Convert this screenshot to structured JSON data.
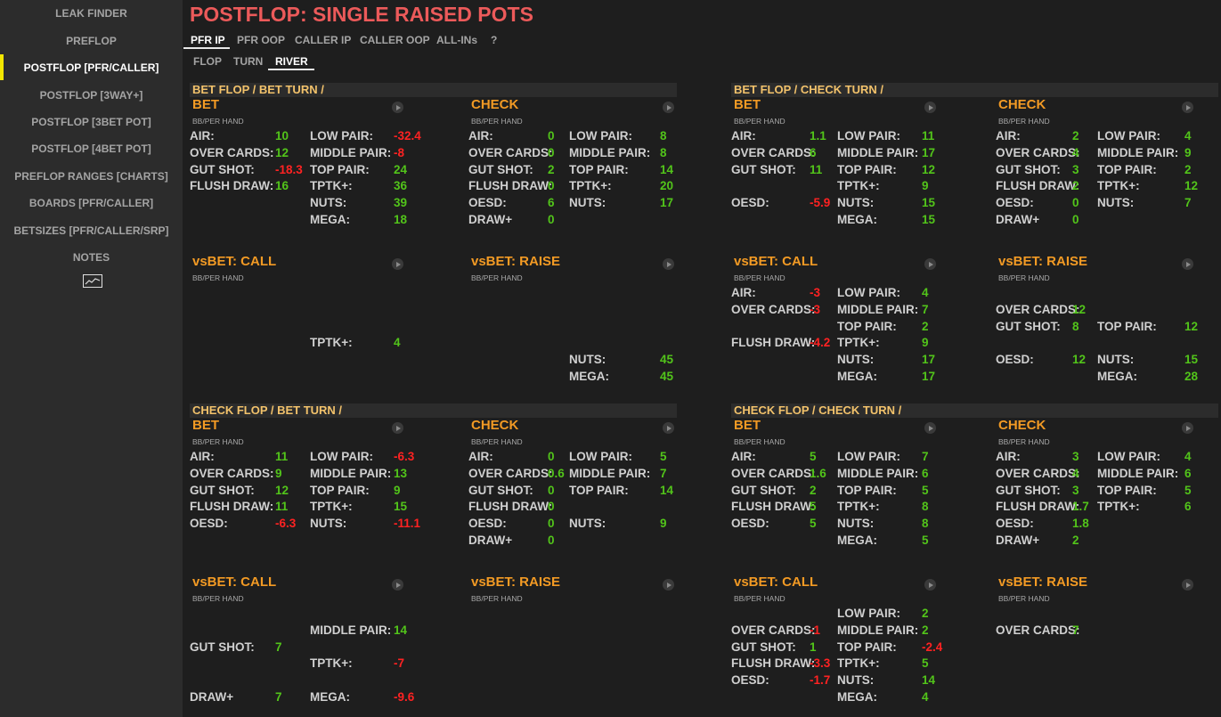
{
  "sidebar": {
    "items": [
      {
        "label": "LEAK FINDER"
      },
      {
        "label": "PREFLOP"
      },
      {
        "label": "POSTFLOP [PFR/CALLER]",
        "active": true
      },
      {
        "label": "POSTFLOP [3WAY+]"
      },
      {
        "label": "POSTFLOP [3BET POT]"
      },
      {
        "label": "POSTFLOP [4BET POT]"
      },
      {
        "label": "PREFLOP RANGES [CHARTS]"
      },
      {
        "label": "BOARDS [PFR/CALLER]"
      },
      {
        "label": "BETSIZES [PFR/CALLER/SRP]"
      },
      {
        "label": "NOTES"
      }
    ],
    "accent_color": "#f2e600",
    "chart_icon": "line-chart-icon"
  },
  "page": {
    "title": "POSTFLOP: SINGLE RAISED POTS"
  },
  "tabs": [
    "PFR IP",
    "PFR OOP",
    "CALLER IP",
    "CALLER OOP",
    "ALL-INs",
    "?"
  ],
  "subtabs": [
    "FLOP",
    "TURN",
    "RIVER"
  ],
  "colors": {
    "positive": "#52c41a",
    "negative": "#ff2222",
    "section": "#f29a24",
    "group": "#f2c26b",
    "title": "#ec5a5a"
  },
  "subtitle": "BB/PER HAND",
  "groups": [
    {
      "title": "BET FLOP / BET TURN /",
      "sections": [
        {
          "title": "BET",
          "left": [
            [
              "AIR:",
              "10",
              ""
            ],
            [
              "OVER CARDS:",
              "12",
              ""
            ],
            [
              "GUT SHOT:",
              "-18.3",
              ""
            ],
            [
              "FLUSH DRAW:",
              "16",
              ""
            ],
            [
              "",
              ""
            ],
            [
              "",
              ""
            ]
          ],
          "right": [
            [
              "LOW PAIR:",
              "-32.4"
            ],
            [
              "MIDDLE PAIR:",
              "-8"
            ],
            [
              "TOP PAIR:",
              "24"
            ],
            [
              "TPTK+:",
              "36"
            ],
            [
              "NUTS:",
              "39"
            ],
            [
              "MEGA:",
              "18"
            ]
          ]
        },
        {
          "title": "CHECK",
          "left": [
            [
              "AIR:",
              "0"
            ],
            [
              "OVER CARDS:",
              "0"
            ],
            [
              "GUT SHOT:",
              "2"
            ],
            [
              "FLUSH DRAW:",
              "0"
            ],
            [
              "OESD:",
              "6"
            ],
            [
              "DRAW+",
              "0"
            ]
          ],
          "right": [
            [
              "LOW PAIR:",
              "8"
            ],
            [
              "MIDDLE PAIR:",
              "8"
            ],
            [
              "TOP PAIR:",
              "14"
            ],
            [
              "TPTK+:",
              "20"
            ],
            [
              "NUTS:",
              "17"
            ],
            [
              "",
              ""
            ]
          ]
        },
        {
          "title": "vsBET: CALL",
          "left": [
            [
              "",
              ""
            ],
            [
              "",
              ""
            ],
            [
              "",
              ""
            ],
            [
              "",
              ""
            ],
            [
              "",
              ""
            ],
            [
              "",
              ""
            ]
          ],
          "right": [
            [
              "",
              ""
            ],
            [
              "",
              ""
            ],
            [
              "",
              ""
            ],
            [
              "TPTK+:",
              "4"
            ],
            [
              "",
              ""
            ],
            [
              "",
              ""
            ]
          ]
        },
        {
          "title": "vsBET: RAISE",
          "left": [
            [
              "",
              ""
            ],
            [
              "",
              ""
            ],
            [
              "",
              ""
            ],
            [
              "",
              ""
            ],
            [
              "",
              ""
            ],
            [
              "",
              ""
            ]
          ],
          "right": [
            [
              "",
              ""
            ],
            [
              "",
              ""
            ],
            [
              "",
              ""
            ],
            [
              "",
              ""
            ],
            [
              "NUTS:",
              "45"
            ],
            [
              "MEGA:",
              "45"
            ]
          ]
        }
      ]
    },
    {
      "title": "BET FLOP / CHECK TURN /",
      "sections": [
        {
          "title": "BET",
          "left": [
            [
              "AIR:",
              "1.1"
            ],
            [
              "OVER CARDS:",
              "6"
            ],
            [
              "GUT SHOT:",
              "11"
            ],
            [
              "",
              ""
            ],
            [
              "OESD:",
              "-5.9"
            ],
            [
              "",
              ""
            ]
          ],
          "right": [
            [
              "LOW PAIR:",
              "11"
            ],
            [
              "MIDDLE PAIR:",
              "17"
            ],
            [
              "TOP PAIR:",
              "12"
            ],
            [
              "TPTK+:",
              "9"
            ],
            [
              "NUTS:",
              "15"
            ],
            [
              "MEGA:",
              "15"
            ]
          ]
        },
        {
          "title": "CHECK",
          "left": [
            [
              "AIR:",
              "2"
            ],
            [
              "OVER CARDS:",
              "4"
            ],
            [
              "GUT SHOT:",
              "3"
            ],
            [
              "FLUSH DRAW:",
              "2"
            ],
            [
              "OESD:",
              "0"
            ],
            [
              "DRAW+",
              "0"
            ]
          ],
          "right": [
            [
              "LOW PAIR:",
              "4"
            ],
            [
              "MIDDLE PAIR:",
              "9"
            ],
            [
              "TOP PAIR:",
              "2"
            ],
            [
              "TPTK+:",
              "12"
            ],
            [
              "NUTS:",
              "7"
            ],
            [
              "",
              ""
            ]
          ]
        },
        {
          "title": "vsBET: CALL",
          "left": [
            [
              "AIR:",
              "-3"
            ],
            [
              "OVER CARDS:",
              "-3"
            ],
            [
              "",
              ""
            ],
            [
              "FLUSH DRAW:",
              "-4.2"
            ],
            [
              "",
              ""
            ],
            [
              "",
              ""
            ]
          ],
          "right": [
            [
              "LOW PAIR:",
              "4"
            ],
            [
              "MIDDLE PAIR:",
              "7"
            ],
            [
              "TOP PAIR:",
              "2"
            ],
            [
              "TPTK+:",
              "9"
            ],
            [
              "NUTS:",
              "17"
            ],
            [
              "MEGA:",
              "17"
            ]
          ]
        },
        {
          "title": "vsBET: RAISE",
          "left": [
            [
              "",
              ""
            ],
            [
              "OVER CARDS:",
              "12"
            ],
            [
              "GUT SHOT:",
              "8"
            ],
            [
              "",
              ""
            ],
            [
              "OESD:",
              "12"
            ],
            [
              "",
              ""
            ]
          ],
          "right": [
            [
              "",
              ""
            ],
            [
              "",
              ""
            ],
            [
              "TOP PAIR:",
              "12"
            ],
            [
              "",
              ""
            ],
            [
              "NUTS:",
              "15"
            ],
            [
              "MEGA:",
              "28"
            ]
          ]
        }
      ]
    },
    {
      "title": "CHECK FLOP / BET TURN /",
      "sections": [
        {
          "title": "BET",
          "left": [
            [
              "AIR:",
              "11"
            ],
            [
              "OVER CARDS:",
              "9"
            ],
            [
              "GUT SHOT:",
              "12"
            ],
            [
              "FLUSH DRAW:",
              "11"
            ],
            [
              "OESD:",
              "-6.3"
            ],
            [
              "",
              ""
            ]
          ],
          "right": [
            [
              "LOW PAIR:",
              "-6.3"
            ],
            [
              "MIDDLE PAIR:",
              "13"
            ],
            [
              "TOP PAIR:",
              "9"
            ],
            [
              "TPTK+:",
              "15"
            ],
            [
              "NUTS:",
              "-11.1"
            ],
            [
              "",
              ""
            ]
          ]
        },
        {
          "title": "CHECK",
          "left": [
            [
              "AIR:",
              "0"
            ],
            [
              "OVER CARDS:",
              "0.6"
            ],
            [
              "GUT SHOT:",
              "0"
            ],
            [
              "FLUSH DRAW:",
              "0"
            ],
            [
              "OESD:",
              "0"
            ],
            [
              "DRAW+",
              "0"
            ]
          ],
          "right": [
            [
              "LOW PAIR:",
              "5"
            ],
            [
              "MIDDLE PAIR:",
              "7"
            ],
            [
              "TOP PAIR:",
              "14"
            ],
            [
              "",
              ""
            ],
            [
              "NUTS:",
              "9"
            ],
            [
              "",
              ""
            ]
          ]
        },
        {
          "title": "vsBET: CALL",
          "left": [
            [
              "",
              ""
            ],
            [
              "",
              ""
            ],
            [
              "GUT SHOT:",
              "7"
            ],
            [
              "",
              ""
            ],
            [
              "",
              ""
            ],
            [
              "DRAW+",
              "7"
            ]
          ],
          "right": [
            [
              "",
              ""
            ],
            [
              "MIDDLE PAIR:",
              "14"
            ],
            [
              "",
              ""
            ],
            [
              "TPTK+:",
              "-7"
            ],
            [
              "",
              ""
            ],
            [
              "MEGA:",
              "-9.6"
            ]
          ]
        },
        {
          "title": "vsBET: RAISE",
          "left": [
            [
              "",
              ""
            ],
            [
              "",
              ""
            ],
            [
              "",
              ""
            ],
            [
              "",
              ""
            ],
            [
              "",
              ""
            ],
            [
              "",
              ""
            ]
          ],
          "right": [
            [
              "",
              ""
            ],
            [
              "",
              ""
            ],
            [
              "",
              ""
            ],
            [
              "",
              ""
            ],
            [
              "",
              ""
            ],
            [
              "",
              ""
            ]
          ]
        }
      ]
    },
    {
      "title": "CHECK FLOP / CHECK TURN /",
      "sections": [
        {
          "title": "BET",
          "left": [
            [
              "AIR:",
              "5"
            ],
            [
              "OVER CARDS:",
              "1.6"
            ],
            [
              "GUT SHOT:",
              "2"
            ],
            [
              "FLUSH DRAW:",
              "5"
            ],
            [
              "OESD:",
              "5"
            ],
            [
              "",
              ""
            ]
          ],
          "right": [
            [
              "LOW PAIR:",
              "7"
            ],
            [
              "MIDDLE PAIR:",
              "6"
            ],
            [
              "TOP PAIR:",
              "5"
            ],
            [
              "TPTK+:",
              "8"
            ],
            [
              "NUTS:",
              "8"
            ],
            [
              "MEGA:",
              "5"
            ]
          ]
        },
        {
          "title": "CHECK",
          "left": [
            [
              "AIR:",
              "3"
            ],
            [
              "OVER CARDS:",
              "4"
            ],
            [
              "GUT SHOT:",
              "3"
            ],
            [
              "FLUSH DRAW:",
              "1.7"
            ],
            [
              "OESD:",
              "1.8"
            ],
            [
              "DRAW+",
              "2"
            ]
          ],
          "right": [
            [
              "LOW PAIR:",
              "4"
            ],
            [
              "MIDDLE PAIR:",
              "6"
            ],
            [
              "TOP PAIR:",
              "5"
            ],
            [
              "TPTK+:",
              "6"
            ],
            [
              "",
              ""
            ],
            [
              "",
              ""
            ]
          ]
        },
        {
          "title": "vsBET: CALL",
          "left": [
            [
              "",
              ""
            ],
            [
              "OVER CARDS:",
              "-1"
            ],
            [
              "GUT SHOT:",
              "1"
            ],
            [
              "FLUSH DRAW:",
              "-3.3"
            ],
            [
              "OESD:",
              "-1.7"
            ],
            [
              "",
              ""
            ]
          ],
          "right": [
            [
              "LOW PAIR:",
              "2"
            ],
            [
              "MIDDLE PAIR:",
              "2"
            ],
            [
              "TOP PAIR:",
              "-2.4"
            ],
            [
              "TPTK+:",
              "5"
            ],
            [
              "NUTS:",
              "14"
            ],
            [
              "MEGA:",
              "4"
            ]
          ]
        },
        {
          "title": "vsBET: RAISE",
          "left": [
            [
              "",
              ""
            ],
            [
              "OVER CARDS:",
              "7"
            ],
            [
              "",
              ""
            ],
            [
              "",
              ""
            ],
            [
              "",
              ""
            ],
            [
              "",
              ""
            ]
          ],
          "right": [
            [
              "",
              ""
            ],
            [
              "",
              ""
            ],
            [
              "",
              ""
            ],
            [
              "",
              ""
            ],
            [
              "",
              ""
            ],
            [
              "",
              ""
            ]
          ]
        }
      ]
    }
  ]
}
